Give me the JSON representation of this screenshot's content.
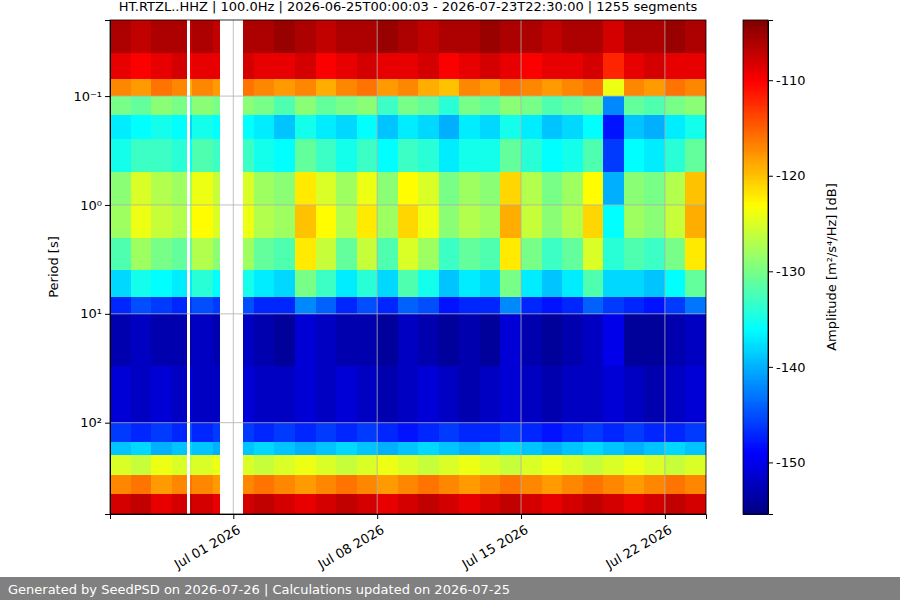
{
  "chart_data": {
    "type": "heatmap",
    "title": "HT.RTZL..HHZ | 100.0Hz | 2026-06-25T00:00:03 - 2026-07-23T22:30:00 | 1255 segments",
    "footer": "Generated by SeedPSD on 2026-07-26 | Calculations updated on 2026-07-25",
    "ylabel": "Period [s]",
    "zlabel": "Amplitude [m²/s⁴/Hz] [dB]",
    "log": "y",
    "grid": true,
    "xlim": [
      "2026-06-25T00:00",
      "2026-07-24T00:00"
    ],
    "xticks": [
      {
        "value": "2026-07-01T00:00",
        "label": "Jul 01 2026"
      },
      {
        "value": "2026-07-08T00:00",
        "label": "Jul 08 2026"
      },
      {
        "value": "2026-07-15T00:00",
        "label": "Jul 15 2026"
      },
      {
        "value": "2026-07-22T00:00",
        "label": "Jul 22 2026"
      }
    ],
    "ylim": [
      0.02,
      690
    ],
    "yticks": [
      {
        "value": 0.1,
        "label": "10⁻¹"
      },
      {
        "value": 1,
        "label": "10⁰"
      },
      {
        "value": 10,
        "label": "10¹"
      },
      {
        "value": 100,
        "label": "10²"
      }
    ],
    "zlim": [
      -155.4,
      -103.7
    ],
    "zticks": [
      -150,
      -140,
      -130,
      -120,
      -110
    ],
    "x_edges": [
      "2026-06-25T00:00",
      "2026-06-26T00:00",
      "2026-06-27T00:00",
      "2026-06-28T00:00",
      "2026-06-28T17:00",
      "2026-06-28T21:00",
      "2026-06-29T00:00",
      "2026-06-30T00:00",
      "2026-06-30T07:30",
      "2026-07-01T11:30",
      "2026-07-02T00:00",
      "2026-07-03T00:00",
      "2026-07-04T00:00",
      "2026-07-05T00:00",
      "2026-07-06T00:00",
      "2026-07-07T00:00",
      "2026-07-08T00:00",
      "2026-07-09T00:00",
      "2026-07-10T00:00",
      "2026-07-11T00:00",
      "2026-07-12T00:00",
      "2026-07-13T00:00",
      "2026-07-14T00:00",
      "2026-07-15T00:00",
      "2026-07-16T00:00",
      "2026-07-17T00:00",
      "2026-07-18T00:00",
      "2026-07-19T00:00",
      "2026-07-20T00:00",
      "2026-07-21T00:00",
      "2026-07-22T00:00",
      "2026-07-23T00:00",
      "2026-07-24T00:00"
    ],
    "y_edges": [
      0.02,
      0.04,
      0.07,
      0.1,
      0.15,
      0.25,
      0.5,
      1,
      2,
      4,
      7,
      10,
      30,
      100,
      150,
      200,
      300,
      450,
      690
    ],
    "z": [
      [
        -106,
        -107,
        -106,
        -106,
        null,
        -107,
        -106,
        -107,
        null,
        -106,
        -106,
        -105,
        -106,
        -107,
        -106,
        -106,
        -105,
        -106,
        -107,
        -106,
        -106,
        -105,
        -106,
        -106,
        -107,
        -106,
        -106,
        -108,
        -106,
        -106,
        -105,
        -106
      ],
      [
        -109,
        -110,
        -109,
        -108,
        null,
        -110,
        -109,
        -109,
        null,
        -108,
        -109,
        -109,
        -108,
        -110,
        -109,
        -108,
        -109,
        -109,
        -108,
        -110,
        -109,
        -108,
        -109,
        -110,
        -109,
        -109,
        -108,
        -112,
        -109,
        -108,
        -109,
        -109
      ],
      [
        -117,
        -118,
        -116,
        -117,
        null,
        -119,
        -117,
        -118,
        null,
        -116,
        -117,
        -118,
        -117,
        -119,
        -117,
        -116,
        -118,
        -117,
        -119,
        -120,
        -117,
        -118,
        -116,
        -117,
        -118,
        -117,
        -116,
        -124,
        -117,
        -118,
        -116,
        -117
      ],
      [
        -130,
        -131,
        -129,
        -130,
        null,
        -132,
        -129,
        -130,
        null,
        -129,
        -130,
        -132,
        -129,
        -131,
        -130,
        -129,
        -133,
        -130,
        -131,
        -134,
        -130,
        -131,
        -129,
        -130,
        -132,
        -131,
        -130,
        -142,
        -131,
        -132,
        -130,
        -129
      ],
      [
        -137,
        -136,
        -135,
        -136,
        null,
        -138,
        -135,
        -136,
        null,
        -136,
        -137,
        -139,
        -135,
        -137,
        -138,
        -136,
        -139,
        -137,
        -138,
        -140,
        -137,
        -138,
        -135,
        -137,
        -139,
        -138,
        -136,
        -148,
        -139,
        -140,
        -137,
        -135
      ],
      [
        -135,
        -133,
        -133,
        -134,
        null,
        -136,
        -132,
        -133,
        null,
        -133,
        -135,
        -136,
        -131,
        -133,
        -135,
        -133,
        -136,
        -133,
        -134,
        -137,
        -135,
        -135,
        -131,
        -134,
        -136,
        -135,
        -132,
        -146,
        -136,
        -137,
        -134,
        -131
      ],
      [
        -129,
        -125,
        -127,
        -128,
        null,
        -128,
        -124,
        -126,
        null,
        -125,
        -128,
        -129,
        -122,
        -125,
        -128,
        -124,
        -129,
        -123,
        -125,
        -130,
        -128,
        -129,
        -121,
        -127,
        -130,
        -128,
        -123,
        -140,
        -129,
        -130,
        -127,
        -120
      ],
      [
        -128,
        -124,
        -126,
        -127,
        null,
        -127,
        -123,
        -125,
        null,
        -124,
        -127,
        -128,
        -120,
        -123,
        -127,
        -122,
        -128,
        -121,
        -124,
        -129,
        -127,
        -128,
        -119,
        -126,
        -129,
        -127,
        -121,
        -136,
        -128,
        -129,
        -126,
        -119
      ],
      [
        -132,
        -128,
        -130,
        -131,
        null,
        -131,
        -127,
        -129,
        null,
        -128,
        -131,
        -132,
        -122,
        -126,
        -131,
        -126,
        -132,
        -125,
        -128,
        -133,
        -131,
        -132,
        -122,
        -130,
        -133,
        -131,
        -125,
        -134,
        -132,
        -133,
        -130,
        -122
      ],
      [
        -138,
        -135,
        -136,
        -137,
        null,
        -137,
        -134,
        -136,
        null,
        -135,
        -137,
        -138,
        -130,
        -133,
        -137,
        -134,
        -138,
        -132,
        -135,
        -139,
        -137,
        -138,
        -130,
        -137,
        -139,
        -137,
        -132,
        -138,
        -138,
        -139,
        -136,
        -131
      ],
      [
        -147,
        -145,
        -146,
        -147,
        null,
        -146,
        -145,
        -146,
        null,
        -145,
        -147,
        -147,
        -142,
        -144,
        -147,
        -145,
        -147,
        -144,
        -145,
        -148,
        -147,
        -147,
        -142,
        -147,
        -148,
        -147,
        -144,
        -146,
        -147,
        -148,
        -146,
        -143
      ],
      [
        -153,
        -152,
        -153,
        -153,
        null,
        -153,
        -152,
        -153,
        null,
        -152,
        -153,
        -154,
        -151,
        -152,
        -153,
        -153,
        -154,
        -152,
        -153,
        -154,
        -153,
        -154,
        -151,
        -153,
        -154,
        -153,
        -152,
        -150,
        -154,
        -154,
        -153,
        -152
      ],
      [
        -151,
        -152,
        -151,
        -152,
        null,
        -151,
        -152,
        -152,
        null,
        -151,
        -152,
        -152,
        -151,
        -152,
        -151,
        -152,
        -153,
        -152,
        -151,
        -152,
        -153,
        -152,
        -151,
        -152,
        -153,
        -152,
        -152,
        -151,
        -152,
        -153,
        -152,
        -151
      ],
      [
        -146,
        -147,
        -146,
        -147,
        null,
        -145,
        -147,
        -146,
        null,
        -146,
        -147,
        -146,
        -147,
        -146,
        -147,
        -146,
        -147,
        -148,
        -147,
        -146,
        -147,
        -147,
        -146,
        -147,
        -148,
        -147,
        -146,
        -147,
        -146,
        -147,
        -147,
        -146
      ],
      [
        -139,
        -138,
        -140,
        -139,
        null,
        -138,
        -139,
        -140,
        null,
        -139,
        -138,
        -139,
        -140,
        -139,
        -138,
        -139,
        -140,
        -139,
        -138,
        -139,
        -140,
        -139,
        -138,
        -139,
        -140,
        -139,
        -138,
        -139,
        -140,
        -139,
        -138,
        -139
      ],
      [
        -125,
        -126,
        -124,
        -125,
        null,
        -126,
        -125,
        -124,
        null,
        -125,
        -126,
        -125,
        -124,
        -125,
        -126,
        -125,
        -124,
        -125,
        -126,
        -125,
        -124,
        -125,
        -126,
        -125,
        -124,
        -125,
        -126,
        -125,
        -124,
        -125,
        -126,
        -125
      ],
      [
        -117,
        -116,
        -118,
        -117,
        null,
        -116,
        -117,
        -118,
        null,
        -117,
        -116,
        -117,
        -118,
        -117,
        -116,
        -117,
        -118,
        -117,
        -116,
        -117,
        -118,
        -117,
        -116,
        -117,
        -118,
        -117,
        -116,
        -117,
        -118,
        -117,
        -116,
        -117
      ],
      [
        -108,
        -107,
        -109,
        -108,
        null,
        -107,
        -108,
        -109,
        null,
        -108,
        -107,
        -108,
        -109,
        -108,
        -107,
        -108,
        -109,
        -108,
        -107,
        -108,
        -109,
        -108,
        -107,
        -108,
        -109,
        -108,
        -107,
        -108,
        -109,
        -108,
        -107,
        -108
      ]
    ]
  }
}
